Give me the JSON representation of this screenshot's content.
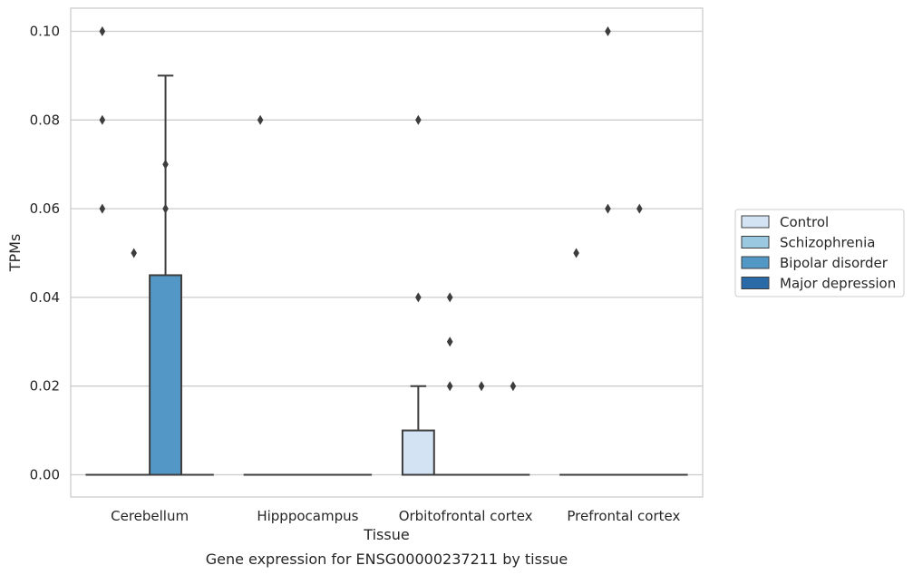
{
  "chart_data": {
    "type": "box",
    "title": "",
    "caption": "Gene expression for ENSG00000237211 by tissue",
    "xlabel": "Tissue",
    "ylabel": "TPMs",
    "ylim": [
      -0.005,
      0.105
    ],
    "yticks": [
      0.0,
      0.02,
      0.04,
      0.06,
      0.08,
      0.1
    ],
    "ytick_labels": [
      "0.00",
      "0.02",
      "0.04",
      "0.06",
      "0.08",
      "0.10"
    ],
    "grid": "horizontal",
    "legend_position": "right",
    "categories": [
      "Cerebellum",
      "Hipppocampus",
      "Orbitofrontal cortex",
      "Prefrontal cortex"
    ],
    "series": [
      {
        "name": "Control",
        "color": "#d3e3f3",
        "boxes": [
          {
            "q1": 0,
            "median": 0,
            "q3": 0,
            "whisker_low": 0,
            "whisker_high": 0,
            "outliers": [
              0.1,
              0.08,
              0.06
            ]
          },
          {
            "q1": 0,
            "median": 0,
            "q3": 0,
            "whisker_low": 0,
            "whisker_high": 0,
            "outliers": [
              0.08
            ]
          },
          {
            "q1": 0,
            "median": 0,
            "q3": 0.01,
            "whisker_low": 0,
            "whisker_high": 0.02,
            "outliers": [
              0.08,
              0.04
            ]
          },
          {
            "q1": 0,
            "median": 0,
            "q3": 0,
            "whisker_low": 0,
            "whisker_high": 0,
            "outliers": [
              0.05
            ]
          }
        ]
      },
      {
        "name": "Schizophrenia",
        "color": "#9ac8e0",
        "boxes": [
          {
            "q1": 0,
            "median": 0,
            "q3": 0,
            "whisker_low": 0,
            "whisker_high": 0,
            "outliers": [
              0.05
            ]
          },
          {
            "q1": 0,
            "median": 0,
            "q3": 0,
            "whisker_low": 0,
            "whisker_high": 0,
            "outliers": []
          },
          {
            "q1": 0,
            "median": 0,
            "q3": 0,
            "whisker_low": 0,
            "whisker_high": 0,
            "outliers": [
              0.04,
              0.03,
              0.02
            ]
          },
          {
            "q1": 0,
            "median": 0,
            "q3": 0,
            "whisker_low": 0,
            "whisker_high": 0,
            "outliers": [
              0.1,
              0.06
            ]
          }
        ]
      },
      {
        "name": "Bipolar disorder",
        "color": "#5297c6",
        "boxes": [
          {
            "q1": 0,
            "median": 0,
            "q3": 0.045,
            "whisker_low": 0,
            "whisker_high": 0.09,
            "outliers": [
              0.07,
              0.06
            ]
          },
          {
            "q1": 0,
            "median": 0,
            "q3": 0,
            "whisker_low": 0,
            "whisker_high": 0,
            "outliers": []
          },
          {
            "q1": 0,
            "median": 0,
            "q3": 0,
            "whisker_low": 0,
            "whisker_high": 0,
            "outliers": [
              0.02
            ]
          },
          {
            "q1": 0,
            "median": 0,
            "q3": 0,
            "whisker_low": 0,
            "whisker_high": 0,
            "outliers": [
              0.06
            ]
          }
        ]
      },
      {
        "name": "Major depression",
        "color": "#2a6aa9",
        "boxes": [
          {
            "q1": 0,
            "median": 0,
            "q3": 0,
            "whisker_low": 0,
            "whisker_high": 0,
            "outliers": []
          },
          {
            "q1": 0,
            "median": 0,
            "q3": 0,
            "whisker_low": 0,
            "whisker_high": 0,
            "outliers": []
          },
          {
            "q1": 0,
            "median": 0,
            "q3": 0,
            "whisker_low": 0,
            "whisker_high": 0,
            "outliers": [
              0.02
            ]
          },
          {
            "q1": 0,
            "median": 0,
            "q3": 0,
            "whisker_low": 0,
            "whisker_high": 0,
            "outliers": []
          }
        ]
      }
    ]
  }
}
